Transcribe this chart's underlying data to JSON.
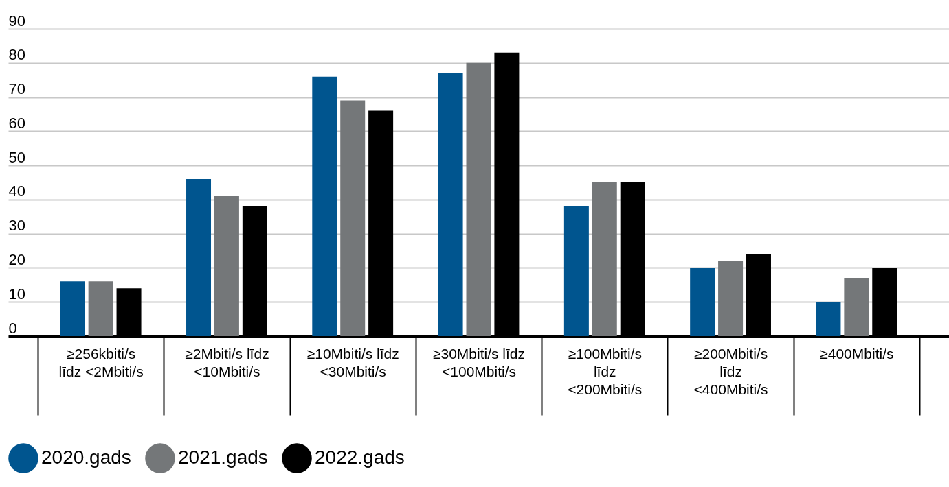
{
  "chart_data": {
    "type": "bar",
    "categories": [
      "≥256kbiti/s\nlīdz <2Mbiti/s",
      "≥2Mbiti/s līdz\n<10Mbiti/s",
      "≥10Mbiti/s līdz\n<30Mbiti/s",
      "≥30Mbiti/s līdz\n<100Mbiti/s",
      "≥100Mbiti/s\nlīdz\n<200Mbiti/s",
      "≥200Mbiti/s\nlīdz\n<400Mbiti/s",
      "≥400Mbiti/s"
    ],
    "series": [
      {
        "name": "2020.gads",
        "color": "#00558f",
        "values": [
          16,
          46,
          76,
          77,
          38,
          20,
          10
        ]
      },
      {
        "name": "2021.gads",
        "color": "#747779",
        "values": [
          16,
          41,
          69,
          80,
          45,
          22,
          17
        ]
      },
      {
        "name": "2022.gads",
        "color": "#000000",
        "values": [
          14,
          38,
          66,
          83,
          45,
          24,
          20
        ]
      }
    ],
    "ylim": [
      0,
      90
    ],
    "yticks": [
      0,
      10,
      20,
      30,
      40,
      50,
      60,
      70,
      80,
      90
    ],
    "grid": "y",
    "legend": "bottom"
  }
}
